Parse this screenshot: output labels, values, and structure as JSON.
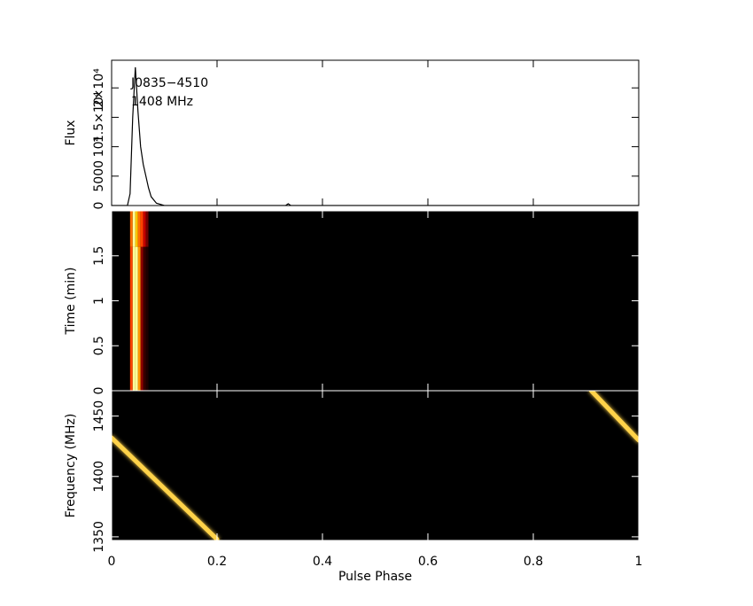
{
  "chart_data": [
    {
      "type": "line",
      "ylabel": "Flux",
      "annotations": [
        "J0835−4510",
        "1408 MHz"
      ],
      "color": "#000000",
      "x": [
        0,
        0.03,
        0.035,
        0.04,
        0.045,
        0.05,
        0.055,
        0.06,
        0.065,
        0.07,
        0.075,
        0.085,
        0.1,
        0.33,
        0.335,
        0.34,
        1
      ],
      "values": [
        0,
        0,
        2000,
        15000,
        23500,
        16000,
        10000,
        7000,
        5000,
        3000,
        1500,
        400,
        0,
        0,
        300,
        0,
        0
      ],
      "xlim": [
        0,
        1
      ],
      "ylim": [
        0,
        24700
      ],
      "yticks": [
        0,
        5000,
        {
          "value": 10000,
          "label": "10⁴"
        },
        {
          "value": 15000,
          "label": "1.5×10⁴"
        },
        {
          "value": 20000,
          "label": "2×10⁴"
        }
      ]
    },
    {
      "type": "heatmap",
      "ylabel": "Time (min)",
      "xbins": [
        0,
        0.035,
        0.04,
        0.045,
        0.05,
        0.055,
        0.06,
        0.065,
        0.07,
        1
      ],
      "ybins": [
        0,
        1.6,
        2
      ],
      "values": [
        [
          0,
          0.5,
          1,
          1,
          0.7,
          0.25,
          0.1,
          0.05,
          0
        ],
        [
          0,
          0.6,
          1,
          0.8,
          0.6,
          0.5,
          0.35,
          0.2,
          0
        ]
      ],
      "xlim": [
        0,
        1
      ],
      "ylim": [
        0,
        2
      ],
      "yticks": [
        0,
        0.5,
        1,
        1.5
      ]
    },
    {
      "type": "track",
      "ylabel": "Frequency (MHz)",
      "xlabel": "Pulse Phase",
      "segments": [
        {
          "x": [
            0,
            0.2
          ],
          "values": [
            1432,
            1348
          ]
        },
        {
          "x": [
            0.91,
            1
          ],
          "values": [
            1471,
            1430
          ]
        }
      ],
      "xlim": [
        0,
        1
      ],
      "ylim": [
        1347,
        1471
      ],
      "yticks": [
        1350,
        1400,
        1450
      ],
      "xticks": [
        0,
        0.2,
        0.4,
        0.6,
        0.8,
        1
      ]
    }
  ]
}
